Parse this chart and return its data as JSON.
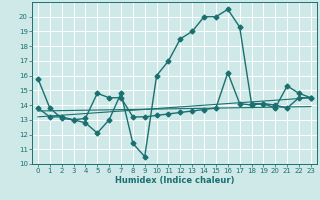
{
  "xlabel": "Humidex (Indice chaleur)",
  "bg_color": "#cfe8e8",
  "grid_color": "#ffffff",
  "line_color": "#1a7070",
  "xlim": [
    -0.5,
    23.5
  ],
  "ylim": [
    10,
    21
  ],
  "xticks": [
    0,
    1,
    2,
    3,
    4,
    5,
    6,
    7,
    8,
    9,
    10,
    11,
    12,
    13,
    14,
    15,
    16,
    17,
    18,
    19,
    20,
    21,
    22,
    23
  ],
  "yticks": [
    10,
    11,
    12,
    13,
    14,
    15,
    16,
    17,
    18,
    19,
    20
  ],
  "series": [
    {
      "x": [
        0,
        1,
        2,
        3,
        4,
        5,
        6,
        7,
        8,
        9,
        10,
        11,
        12,
        13,
        14,
        15,
        16,
        17,
        18,
        19,
        20,
        21,
        22,
        23
      ],
      "y": [
        15.8,
        13.8,
        13.1,
        13.0,
        12.8,
        12.1,
        13.0,
        14.8,
        11.4,
        10.5,
        16.0,
        17.0,
        18.5,
        19.0,
        20.0,
        20.0,
        20.5,
        19.3,
        14.1,
        14.1,
        13.8,
        15.3,
        14.8,
        14.5
      ],
      "marker": "D",
      "markersize": 2.5,
      "linewidth": 1.0
    },
    {
      "x": [
        0,
        1,
        2,
        3,
        4,
        5,
        6,
        7,
        8,
        9,
        10,
        11,
        12,
        13,
        14,
        15,
        16,
        17,
        18,
        19,
        20,
        21,
        22,
        23
      ],
      "y": [
        13.8,
        13.2,
        13.2,
        13.0,
        13.1,
        14.8,
        14.5,
        14.5,
        13.2,
        13.2,
        13.3,
        13.4,
        13.5,
        13.6,
        13.7,
        13.8,
        16.2,
        14.1,
        14.0,
        14.1,
        14.0,
        13.8,
        14.5,
        14.5
      ],
      "marker": "D",
      "markersize": 2.5,
      "linewidth": 1.0
    },
    {
      "x": [
        0,
        23
      ],
      "y": [
        13.2,
        14.5
      ],
      "marker": null,
      "linewidth": 0.8
    },
    {
      "x": [
        0,
        23
      ],
      "y": [
        13.6,
        13.9
      ],
      "marker": null,
      "linewidth": 0.8
    }
  ]
}
